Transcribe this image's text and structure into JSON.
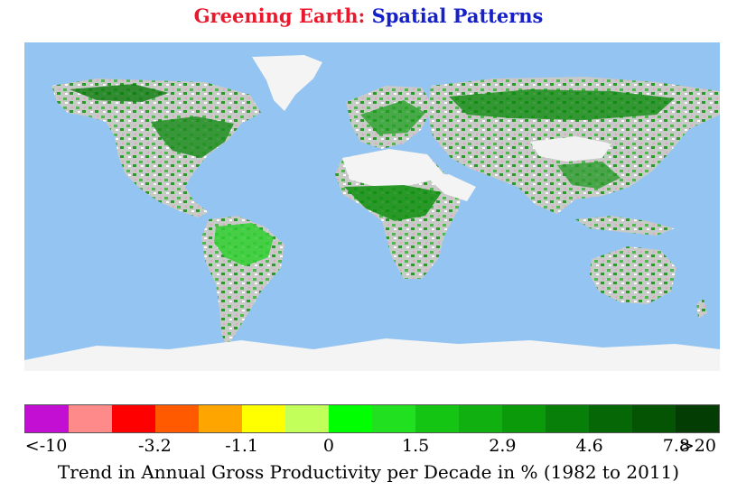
{
  "title": {
    "part1": "Greening Earth:",
    "part2": "Spatial Patterns"
  },
  "colors": {
    "title_part1": "#e8192c",
    "title_part2": "#1520c8",
    "ocean": "#93c4f2",
    "ice": "#f4f4f4",
    "land": "#c9cbc9"
  },
  "legend": {
    "swatches": [
      "#c30fd3",
      "#ff8a8a",
      "#ff0000",
      "#ff5a00",
      "#ffa500",
      "#ffff00",
      "#c2ff5a",
      "#00ff00",
      "#20e020",
      "#14c514",
      "#0fb00f",
      "#0a9a0a",
      "#087f08",
      "#066706",
      "#045404",
      "#033d03"
    ],
    "tick_labels": [
      "<-10",
      "-3.2",
      "-1.1",
      "0",
      "1.5",
      "2.9",
      "4.6",
      "7.8",
      ">20"
    ],
    "caption": "Trend in Annual Gross Productivity per Decade in % (1982 to 2011)"
  }
}
